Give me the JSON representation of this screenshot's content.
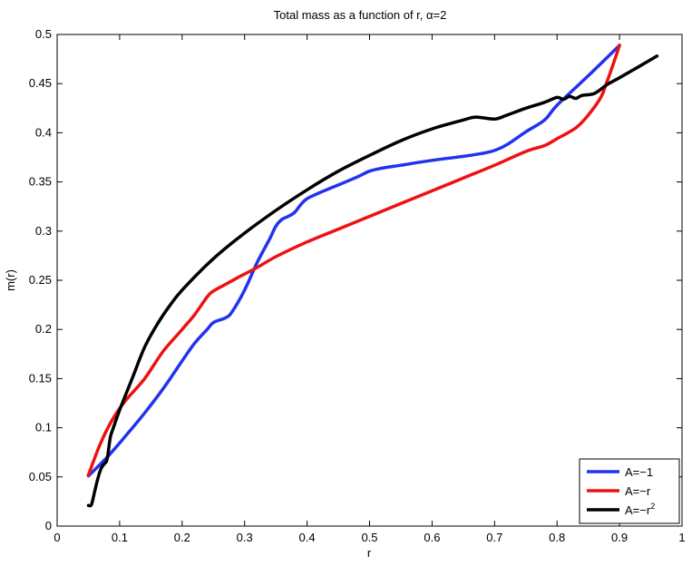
{
  "chart_data": {
    "type": "line",
    "title": "Total mass as a function of r, α=2",
    "xlabel": "r",
    "ylabel": "m(r)",
    "xlim": [
      0,
      1
    ],
    "ylim": [
      0,
      0.5
    ],
    "xticks": [
      "0",
      "0.1",
      "0.2",
      "0.3",
      "0.4",
      "0.5",
      "0.6",
      "0.7",
      "0.8",
      "0.9",
      "1"
    ],
    "yticks": [
      "0",
      "0.05",
      "0.1",
      "0.15",
      "0.2",
      "0.25",
      "0.3",
      "0.35",
      "0.4",
      "0.45",
      "0.5"
    ],
    "grid": false,
    "legend_position": "bottom-right",
    "series": [
      {
        "name": "A=−1",
        "legend_main": "A=−1",
        "legend_sup": "",
        "color": "#2233ee",
        "x": [
          0.05,
          0.08,
          0.11,
          0.14,
          0.17,
          0.2,
          0.22,
          0.24,
          0.25,
          0.27,
          0.28,
          0.3,
          0.32,
          0.34,
          0.35,
          0.36,
          0.37,
          0.38,
          0.39,
          0.4,
          0.42,
          0.45,
          0.48,
          0.5,
          0.52,
          0.55,
          0.6,
          0.65,
          0.68,
          0.7,
          0.72,
          0.75,
          0.78,
          0.8,
          0.85,
          0.9
        ],
        "y": [
          0.051,
          0.07,
          0.092,
          0.115,
          0.14,
          0.168,
          0.186,
          0.2,
          0.207,
          0.212,
          0.218,
          0.24,
          0.268,
          0.292,
          0.305,
          0.312,
          0.315,
          0.319,
          0.327,
          0.333,
          0.339,
          0.347,
          0.355,
          0.361,
          0.364,
          0.367,
          0.372,
          0.376,
          0.379,
          0.382,
          0.388,
          0.401,
          0.413,
          0.428,
          0.458,
          0.489
        ]
      },
      {
        "name": "A=−r",
        "legend_main": "A=−r",
        "legend_sup": "",
        "color": "#ee1111",
        "x": [
          0.05,
          0.07,
          0.09,
          0.11,
          0.14,
          0.17,
          0.2,
          0.22,
          0.24,
          0.25,
          0.27,
          0.29,
          0.32,
          0.35,
          0.4,
          0.45,
          0.5,
          0.55,
          0.6,
          0.65,
          0.7,
          0.75,
          0.78,
          0.8,
          0.83,
          0.85,
          0.87,
          0.88,
          0.89,
          0.9
        ],
        "y": [
          0.052,
          0.085,
          0.11,
          0.128,
          0.15,
          0.178,
          0.2,
          0.215,
          0.233,
          0.239,
          0.246,
          0.253,
          0.263,
          0.274,
          0.289,
          0.302,
          0.315,
          0.328,
          0.341,
          0.354,
          0.367,
          0.381,
          0.387,
          0.394,
          0.405,
          0.418,
          0.436,
          0.452,
          0.47,
          0.489
        ]
      },
      {
        "name": "A=−r²",
        "legend_main": "A=−r",
        "legend_sup": "2",
        "color": "#000000",
        "x": [
          0.05,
          0.055,
          0.06,
          0.065,
          0.07,
          0.075,
          0.08,
          0.085,
          0.09,
          0.1,
          0.12,
          0.14,
          0.16,
          0.18,
          0.2,
          0.25,
          0.3,
          0.35,
          0.4,
          0.45,
          0.5,
          0.55,
          0.6,
          0.65,
          0.67,
          0.7,
          0.72,
          0.75,
          0.78,
          0.8,
          0.81,
          0.82,
          0.83,
          0.84,
          0.86,
          0.88,
          0.9,
          0.93,
          0.96
        ],
        "y": [
          0.021,
          0.022,
          0.035,
          0.048,
          0.058,
          0.063,
          0.068,
          0.09,
          0.1,
          0.118,
          0.15,
          0.182,
          0.205,
          0.224,
          0.24,
          0.272,
          0.298,
          0.321,
          0.342,
          0.361,
          0.377,
          0.392,
          0.404,
          0.413,
          0.416,
          0.414,
          0.418,
          0.425,
          0.431,
          0.436,
          0.434,
          0.437,
          0.435,
          0.438,
          0.44,
          0.449,
          0.456,
          0.467,
          0.478
        ]
      }
    ]
  }
}
